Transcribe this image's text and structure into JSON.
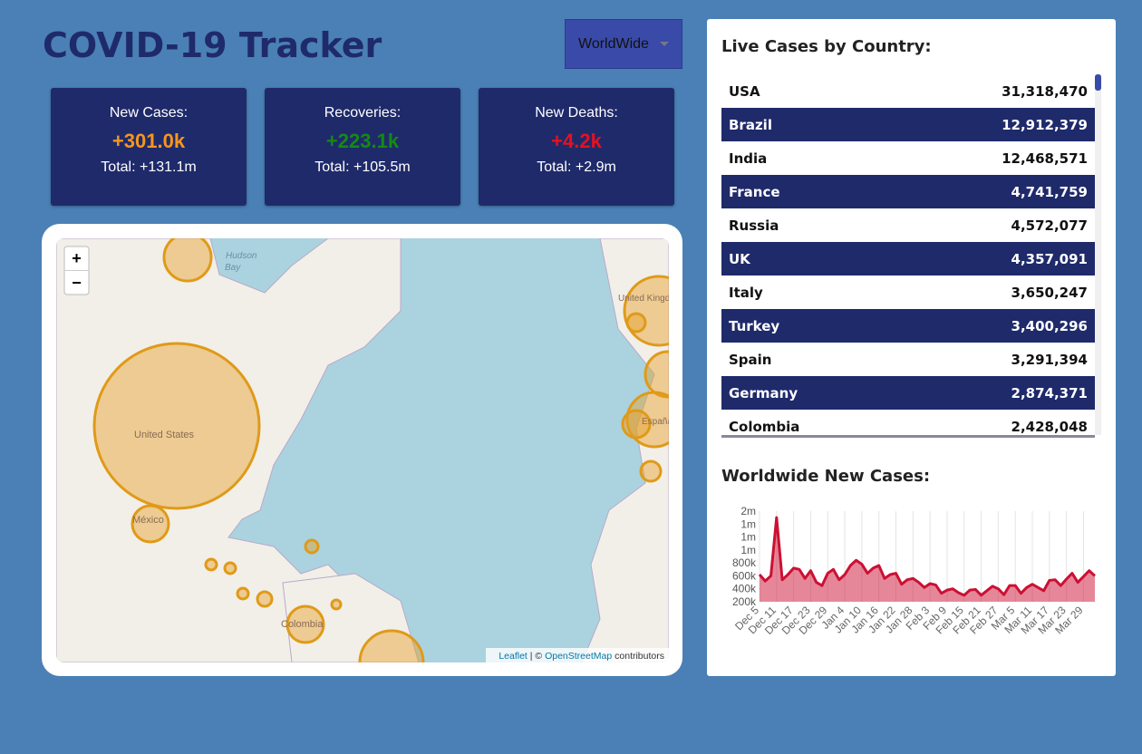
{
  "header": {
    "title": "COVID-19 Tracker",
    "dropdown": "WorldWide"
  },
  "stats": [
    {
      "label": "New Cases:",
      "today": "+301.0k",
      "total": "Total: +131.1m",
      "color": "#f5961e"
    },
    {
      "label": "Recoveries:",
      "today": "+223.1k",
      "total": "Total: +105.5m",
      "color": "#148a14"
    },
    {
      "label": "New Deaths:",
      "today": "+4.2k",
      "total": "Total: +2.9m",
      "color": "#e8101e"
    }
  ],
  "map": {
    "zoom_in": "+",
    "zoom_out": "−",
    "attribution_link1": "Leaflet",
    "attribution_sep": " | © ",
    "attribution_link2": "OpenStreetMap",
    "attribution_tail": " contributors",
    "labels": [
      "Hudson",
      "Bay",
      "United States",
      "México",
      "Colombia",
      "United Kingdom",
      "España"
    ]
  },
  "table": {
    "title": "Live Cases by Country:",
    "rows": [
      [
        "USA",
        "31,318,470"
      ],
      [
        "Brazil",
        "12,912,379"
      ],
      [
        "India",
        "12,468,571"
      ],
      [
        "France",
        "4,741,759"
      ],
      [
        "Russia",
        "4,572,077"
      ],
      [
        "UK",
        "4,357,091"
      ],
      [
        "Italy",
        "3,650,247"
      ],
      [
        "Turkey",
        "3,400,296"
      ],
      [
        "Spain",
        "3,291,394"
      ],
      [
        "Germany",
        "2,874,371"
      ],
      [
        "Colombia",
        "2,428,048"
      ]
    ]
  },
  "chart_data": {
    "type": "area",
    "title": "Worldwide New Cases:",
    "color": "#cc1034",
    "fill": "rgba(204,16,52,0.5)",
    "categories": [
      "Dec 5",
      null,
      null,
      "Dec 11",
      null,
      null,
      "Dec 17",
      null,
      null,
      "Dec 23",
      null,
      null,
      "Dec 29",
      null,
      null,
      "Jan 4",
      null,
      null,
      "Jan 10",
      null,
      null,
      "Jan 16",
      null,
      null,
      "Jan 22",
      null,
      null,
      "Jan 28",
      null,
      null,
      "Feb 3",
      null,
      null,
      "Feb 9",
      null,
      null,
      "Feb 15",
      null,
      null,
      "Feb 21",
      null,
      null,
      "Feb 27",
      null,
      null,
      "Mar 5",
      null,
      null,
      "Mar 11",
      null,
      null,
      "Mar 17",
      null,
      null,
      "Mar 23",
      null,
      null,
      "Mar 29",
      null,
      null
    ],
    "values": [
      620000,
      520000,
      600000,
      1500000,
      540000,
      620000,
      720000,
      700000,
      560000,
      680000,
      500000,
      450000,
      640000,
      700000,
      540000,
      620000,
      760000,
      840000,
      780000,
      640000,
      720000,
      760000,
      560000,
      620000,
      640000,
      470000,
      540000,
      560000,
      500000,
      420000,
      480000,
      460000,
      330000,
      380000,
      400000,
      340000,
      300000,
      380000,
      390000,
      300000,
      370000,
      440000,
      400000,
      310000,
      450000,
      450000,
      330000,
      420000,
      470000,
      420000,
      370000,
      530000,
      540000,
      450000,
      550000,
      640000,
      500000,
      590000,
      680000,
      600000
    ],
    "ylim": [
      200000,
      1600000
    ],
    "yticks": [
      {
        "value": 200000,
        "label": "200k"
      },
      {
        "value": 400000,
        "label": "400k"
      },
      {
        "value": 600000,
        "label": "600k"
      },
      {
        "value": 800000,
        "label": "800k"
      },
      {
        "value": 1000000,
        "label": "1m"
      },
      {
        "value": 1200000,
        "label": "1m"
      },
      {
        "value": 1400000,
        "label": "1m"
      },
      {
        "value": 1600000,
        "label": "2m"
      }
    ],
    "grid": true
  }
}
